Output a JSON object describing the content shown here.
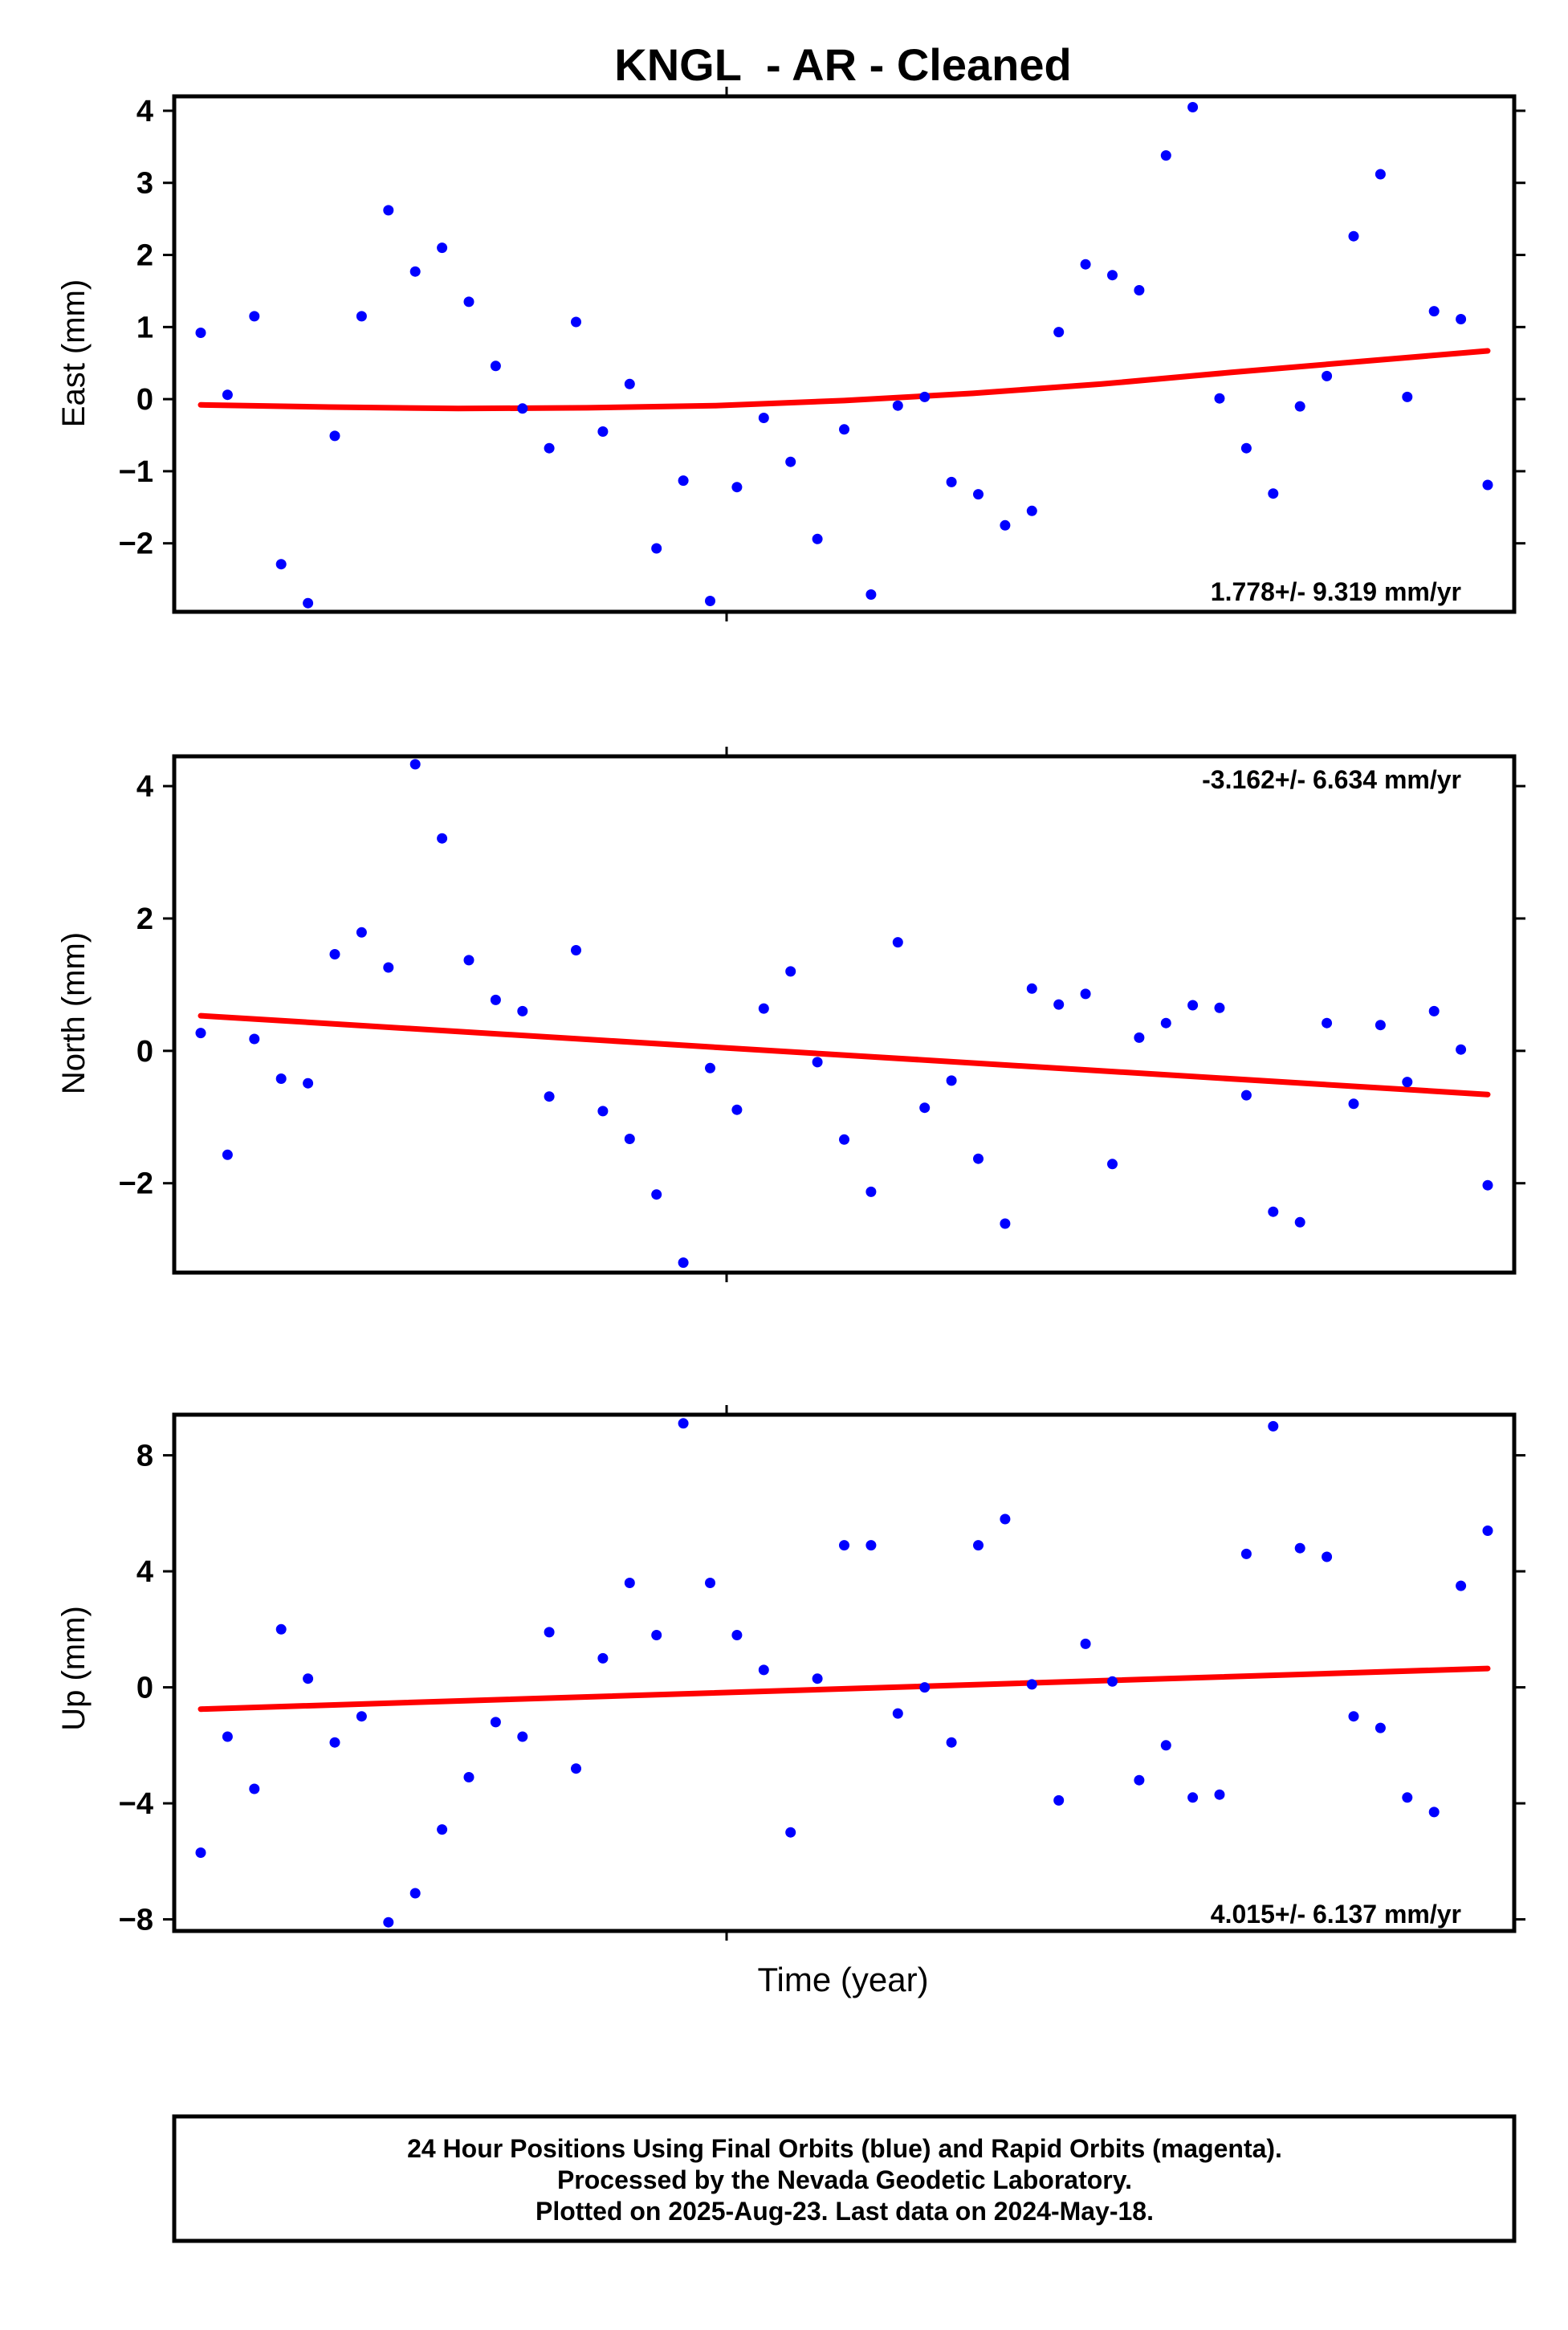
{
  "chart_data": {
    "type": "scatter",
    "title": "KNGL  - AR - Cleaned",
    "xlabel": "Time (year)",
    "panels": [
      {
        "key": "east",
        "ylabel": "East (mm)",
        "ylim": [
          -2.95,
          4.2
        ],
        "yticks": [
          4,
          3,
          2,
          1,
          0,
          -1,
          -2
        ],
        "ytick_labels": [
          "4",
          "3",
          "2",
          "1",
          "0",
          "−1",
          "−2"
        ],
        "rate_label": "1.778+/- 9.319 mm/yr",
        "rate_position": "bottom-right",
        "values": [
          0.92,
          0.06,
          1.15,
          -2.29,
          -2.83,
          -0.51,
          1.15,
          2.62,
          1.77,
          2.1,
          1.35,
          0.46,
          -0.13,
          -0.68,
          1.07,
          -0.45,
          0.21,
          -2.07,
          -1.13,
          -2.8,
          -1.22,
          -0.26,
          -0.87,
          -1.94,
          -0.42,
          -2.71,
          -0.09,
          0.03,
          -1.15,
          -1.32,
          -1.75,
          -1.55,
          0.93,
          1.87,
          1.72,
          1.51,
          3.38,
          4.05,
          0.01,
          -0.68,
          -1.31,
          -0.1,
          0.32,
          2.26,
          3.12,
          0.03,
          1.22,
          1.11,
          -1.19
        ],
        "trend": [
          -0.08,
          -0.11,
          -0.13,
          -0.12,
          -0.09,
          -0.02,
          0.08,
          0.21,
          0.37,
          0.52,
          0.67
        ]
      },
      {
        "key": "north",
        "ylabel": "North (mm)",
        "ylim": [
          -3.35,
          4.45
        ],
        "yticks": [
          4,
          2,
          0,
          -2
        ],
        "ytick_labels": [
          "4",
          "2",
          "0",
          "−2"
        ],
        "rate_label": "-3.162+/- 6.634 mm/yr",
        "rate_position": "top-right",
        "values": [
          0.27,
          -1.57,
          0.18,
          -0.42,
          -0.49,
          1.46,
          1.79,
          1.26,
          4.33,
          3.21,
          1.37,
          0.77,
          0.6,
          -0.69,
          1.52,
          -0.91,
          -1.33,
          -2.17,
          -3.2,
          -0.26,
          -0.89,
          0.64,
          1.2,
          -0.17,
          -1.34,
          -2.13,
          1.64,
          -0.86,
          -0.45,
          -1.63,
          -2.61,
          0.94,
          0.7,
          0.86,
          -1.71,
          0.2,
          0.42,
          0.69,
          0.65,
          -0.67,
          -2.43,
          -2.59,
          0.42,
          -0.8,
          0.39,
          -0.47,
          0.6,
          0.02,
          -2.03
        ],
        "trend": [
          0.53,
          -0.66
        ]
      },
      {
        "key": "up",
        "ylabel": "Up (mm)",
        "ylim": [
          -8.4,
          9.4
        ],
        "yticks": [
          8,
          4,
          0,
          -4,
          -8
        ],
        "ytick_labels": [
          "8",
          "4",
          "0",
          "−4",
          "−8"
        ],
        "rate_label": "4.015+/- 6.137 mm/yr",
        "rate_position": "bottom-right",
        "values": [
          -5.7,
          -1.7,
          -3.5,
          2.0,
          0.3,
          -1.9,
          -1.0,
          -8.1,
          -7.1,
          -4.9,
          -3.1,
          -1.2,
          -1.7,
          1.9,
          -2.8,
          1.0,
          3.6,
          1.8,
          9.1,
          3.6,
          1.8,
          0.6,
          -5.0,
          0.3,
          4.9,
          4.9,
          -0.9,
          0.0,
          -1.9,
          4.9,
          5.8,
          0.1,
          -3.9,
          1.5,
          0.2,
          -3.2,
          -2.0,
          -3.8,
          -3.7,
          4.6,
          9.0,
          4.8,
          4.5,
          -1.0,
          -1.4,
          -3.8,
          -4.3,
          3.5,
          5.4
        ],
        "trend": [
          -0.75,
          0.65
        ]
      }
    ],
    "series": [
      {
        "name": "Final Orbits (blue)",
        "color": "#0000ff"
      }
    ],
    "trend_color": "#ff0000",
    "grid": false
  },
  "footer": {
    "line1": "24 Hour Positions Using Final Orbits (blue) and Rapid Orbits (magenta).",
    "line2": "Processed by the Nevada Geodetic Laboratory.",
    "line3": "Plotted on 2025-Aug-23. Last data on 2024-May-18."
  }
}
